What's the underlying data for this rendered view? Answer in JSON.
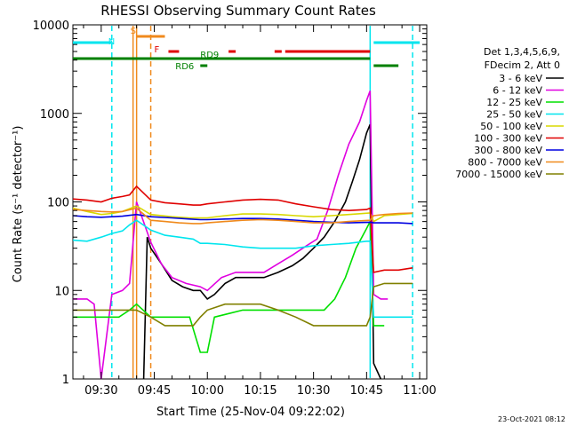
{
  "chart_data": {
    "type": "line",
    "title": "RHESSI Observing Summary Count Rates",
    "xlabel": "Start Time (25-Nov-04 09:22:02)",
    "ylabel": "Count Rate (s⁻¹ detector⁻¹)",
    "y_scale": "log",
    "ylim": [
      1,
      10000
    ],
    "xlim": [
      "09:22",
      "11:02"
    ],
    "x_ticks": [
      "09:30",
      "09:45",
      "10:00",
      "10:15",
      "10:30",
      "10:45",
      "11:00"
    ],
    "y_ticks": [
      "1",
      "10",
      "100",
      "1000",
      "10000"
    ],
    "grid": false,
    "legend": {
      "placement": "right",
      "header": [
        "Det 1,3,4,5,6,9,",
        "FDecim 2, Att 0"
      ]
    },
    "footer_date": "23-Oct-2021 08:12",
    "flags": [
      {
        "label": "S",
        "color": "#f08a1c",
        "segments": [
          [
            "09:40",
            "09:48"
          ]
        ]
      },
      {
        "label": "N",
        "color": "#00e5ee",
        "segments": [
          [
            "09:22",
            "09:33"
          ],
          [
            "10:47",
            "11:00"
          ]
        ]
      },
      {
        "label": "F",
        "color": "#e00000",
        "segments": [
          [
            "09:49",
            "09:52"
          ],
          [
            "10:06",
            "10:08"
          ],
          [
            "10:19",
            "10:21"
          ],
          [
            "10:22",
            "10:46"
          ]
        ]
      },
      {
        "label": "RD6",
        "color": "#008000",
        "segments": [
          [
            "09:58",
            "10:00"
          ],
          [
            "10:47",
            "10:54"
          ]
        ]
      },
      {
        "label": "RD9",
        "color": "#008000",
        "segments": [
          [
            "09:22",
            "10:46"
          ]
        ]
      }
    ],
    "vlines": [
      {
        "time": "09:33",
        "color": "#00e5ee",
        "style": "dashed"
      },
      {
        "time": "09:39",
        "color": "#f08a1c",
        "style": "solid"
      },
      {
        "time": "09:40",
        "color": "#f08a1c",
        "style": "solid"
      },
      {
        "time": "09:44",
        "color": "#f08a1c",
        "style": "dashed"
      },
      {
        "time": "10:46",
        "color": "#00e5ee",
        "style": "solid"
      },
      {
        "time": "10:58",
        "color": "#00e5ee",
        "style": "dashed"
      }
    ],
    "gaps": [
      [
        "09:40",
        "09:44"
      ],
      [
        "10:46",
        "10:47"
      ]
    ],
    "series": [
      {
        "name": "3 - 6 keV",
        "color": "#000000",
        "points": [
          [
            "09:42",
            1
          ],
          [
            "09:43",
            40
          ],
          [
            "09:44",
            30
          ],
          [
            "09:47",
            20
          ],
          [
            "09:50",
            13
          ],
          [
            "09:53",
            11
          ],
          [
            "09:56",
            10
          ],
          [
            "09:58",
            10
          ],
          [
            "10:00",
            8
          ],
          [
            "10:02",
            9
          ],
          [
            "10:05",
            12
          ],
          [
            "10:08",
            14
          ],
          [
            "10:12",
            14
          ],
          [
            "10:16",
            14
          ],
          [
            "10:20",
            16
          ],
          [
            "10:24",
            19
          ],
          [
            "10:27",
            23
          ],
          [
            "10:30",
            30
          ],
          [
            "10:33",
            40
          ],
          [
            "10:36",
            60
          ],
          [
            "10:39",
            100
          ],
          [
            "10:41",
            170
          ],
          [
            "10:43",
            300
          ],
          [
            "10:45",
            600
          ],
          [
            "10:46",
            750
          ],
          [
            "10:47",
            1.5
          ],
          [
            "10:49",
            1
          ]
        ]
      },
      {
        "name": "6 - 12 keV",
        "color": "#e000e0",
        "points": [
          [
            "09:22",
            8
          ],
          [
            "09:26",
            8
          ],
          [
            "09:28",
            7
          ],
          [
            "09:30",
            1
          ],
          [
            "09:33",
            9
          ],
          [
            "09:36",
            10
          ],
          [
            "09:38",
            12
          ],
          [
            "09:40",
            100
          ],
          [
            "09:44",
            35
          ],
          [
            "09:47",
            20
          ],
          [
            "09:50",
            14
          ],
          [
            "09:54",
            12
          ],
          [
            "09:58",
            11
          ],
          [
            "10:00",
            10
          ],
          [
            "10:04",
            14
          ],
          [
            "10:08",
            16
          ],
          [
            "10:12",
            16
          ],
          [
            "10:16",
            16
          ],
          [
            "10:20",
            20
          ],
          [
            "10:24",
            25
          ],
          [
            "10:28",
            32
          ],
          [
            "10:31",
            38
          ],
          [
            "10:34",
            80
          ],
          [
            "10:37",
            200
          ],
          [
            "10:40",
            450
          ],
          [
            "10:43",
            800
          ],
          [
            "10:45",
            1400
          ],
          [
            "10:46",
            1800
          ],
          [
            "10:47",
            9
          ],
          [
            "10:49",
            8
          ],
          [
            "10:51",
            8
          ]
        ]
      },
      {
        "name": "12 - 25 keV",
        "color": "#00e000",
        "points": [
          [
            "09:22",
            5
          ],
          [
            "09:30",
            5
          ],
          [
            "09:35",
            5
          ],
          [
            "09:38",
            6
          ],
          [
            "09:40",
            7
          ],
          [
            "09:44",
            5
          ],
          [
            "09:50",
            5
          ],
          [
            "09:55",
            5
          ],
          [
            "09:58",
            2
          ],
          [
            "10:00",
            2
          ],
          [
            "10:02",
            5
          ],
          [
            "10:10",
            6
          ],
          [
            "10:20",
            6
          ],
          [
            "10:30",
            6
          ],
          [
            "10:33",
            6
          ],
          [
            "10:36",
            8
          ],
          [
            "10:39",
            14
          ],
          [
            "10:42",
            30
          ],
          [
            "10:45",
            50
          ],
          [
            "10:46",
            60
          ],
          [
            "10:47",
            4
          ],
          [
            "10:50",
            4
          ]
        ]
      },
      {
        "name": "25 - 50 keV",
        "color": "#00e5ee",
        "points": [
          [
            "09:22",
            37
          ],
          [
            "09:26",
            36
          ],
          [
            "09:30",
            40
          ],
          [
            "09:33",
            44
          ],
          [
            "09:36",
            47
          ],
          [
            "09:38",
            55
          ],
          [
            "09:40",
            62
          ],
          [
            "09:44",
            48
          ],
          [
            "09:48",
            42
          ],
          [
            "09:52",
            40
          ],
          [
            "09:56",
            38
          ],
          [
            "09:58",
            34
          ],
          [
            "10:00",
            34
          ],
          [
            "10:05",
            33
          ],
          [
            "10:10",
            31
          ],
          [
            "10:15",
            30
          ],
          [
            "10:20",
            30
          ],
          [
            "10:25",
            30
          ],
          [
            "10:30",
            32
          ],
          [
            "10:35",
            33
          ],
          [
            "10:40",
            34
          ],
          [
            "10:45",
            36
          ],
          [
            "10:46",
            36
          ],
          [
            "10:47",
            5
          ],
          [
            "10:50",
            5
          ],
          [
            "10:54",
            5
          ],
          [
            "10:58",
            5
          ]
        ]
      },
      {
        "name": "50 - 100 keV",
        "color": "#d8d800",
        "points": [
          [
            "09:22",
            85
          ],
          [
            "09:26",
            78
          ],
          [
            "09:30",
            72
          ],
          [
            "09:33",
            74
          ],
          [
            "09:36",
            78
          ],
          [
            "09:40",
            90
          ],
          [
            "09:44",
            72
          ],
          [
            "09:50",
            68
          ],
          [
            "09:55",
            66
          ],
          [
            "09:58",
            66
          ],
          [
            "10:00",
            66
          ],
          [
            "10:05",
            70
          ],
          [
            "10:10",
            73
          ],
          [
            "10:15",
            73
          ],
          [
            "10:20",
            72
          ],
          [
            "10:25",
            70
          ],
          [
            "10:30",
            68
          ],
          [
            "10:35",
            70
          ],
          [
            "10:40",
            72
          ],
          [
            "10:46",
            75
          ],
          [
            "10:47",
            60
          ],
          [
            "10:50",
            70
          ],
          [
            "10:54",
            72
          ],
          [
            "10:58",
            74
          ]
        ]
      },
      {
        "name": "100 - 300 keV",
        "color": "#e00000",
        "points": [
          [
            "09:22",
            108
          ],
          [
            "09:26",
            105
          ],
          [
            "09:30",
            100
          ],
          [
            "09:33",
            110
          ],
          [
            "09:36",
            115
          ],
          [
            "09:38",
            120
          ],
          [
            "09:40",
            150
          ],
          [
            "09:44",
            105
          ],
          [
            "09:48",
            98
          ],
          [
            "09:52",
            95
          ],
          [
            "09:56",
            92
          ],
          [
            "09:58",
            92
          ],
          [
            "10:00",
            95
          ],
          [
            "10:05",
            100
          ],
          [
            "10:10",
            105
          ],
          [
            "10:15",
            107
          ],
          [
            "10:20",
            105
          ],
          [
            "10:25",
            95
          ],
          [
            "10:30",
            88
          ],
          [
            "10:35",
            82
          ],
          [
            "10:40",
            80
          ],
          [
            "10:45",
            82
          ],
          [
            "10:46",
            85
          ],
          [
            "10:47",
            16
          ],
          [
            "10:50",
            17
          ],
          [
            "10:54",
            17
          ],
          [
            "10:58",
            18
          ]
        ]
      },
      {
        "name": "300 - 800 keV",
        "color": "#0000e0",
        "points": [
          [
            "09:22",
            70
          ],
          [
            "09:26",
            68
          ],
          [
            "09:30",
            67
          ],
          [
            "09:33",
            68
          ],
          [
            "09:36",
            69
          ],
          [
            "09:40",
            72
          ],
          [
            "09:44",
            68
          ],
          [
            "09:50",
            66
          ],
          [
            "09:55",
            64
          ],
          [
            "09:58",
            63
          ],
          [
            "10:00",
            63
          ],
          [
            "10:05",
            64
          ],
          [
            "10:10",
            65
          ],
          [
            "10:15",
            65
          ],
          [
            "10:20",
            64
          ],
          [
            "10:25",
            62
          ],
          [
            "10:30",
            60
          ],
          [
            "10:35",
            59
          ],
          [
            "10:40",
            58
          ],
          [
            "10:46",
            59
          ],
          [
            "10:47",
            58
          ],
          [
            "10:50",
            58
          ],
          [
            "10:54",
            58
          ],
          [
            "10:58",
            57
          ]
        ]
      },
      {
        "name": "800 - 7000 keV",
        "color": "#f08a1c",
        "points": [
          [
            "09:22",
            82
          ],
          [
            "09:26",
            80
          ],
          [
            "09:30",
            78
          ],
          [
            "09:33",
            77
          ],
          [
            "09:36",
            78
          ],
          [
            "09:40",
            85
          ],
          [
            "09:44",
            62
          ],
          [
            "09:48",
            60
          ],
          [
            "09:52",
            58
          ],
          [
            "09:56",
            57
          ],
          [
            "09:58",
            57
          ],
          [
            "10:00",
            58
          ],
          [
            "10:05",
            60
          ],
          [
            "10:10",
            62
          ],
          [
            "10:15",
            63
          ],
          [
            "10:20",
            62
          ],
          [
            "10:25",
            60
          ],
          [
            "10:30",
            58
          ],
          [
            "10:35",
            58
          ],
          [
            "10:40",
            60
          ],
          [
            "10:46",
            62
          ],
          [
            "10:47",
            70
          ],
          [
            "10:50",
            72
          ],
          [
            "10:54",
            74
          ],
          [
            "10:58",
            75
          ]
        ]
      },
      {
        "name": "7000 - 15000 keV",
        "color": "#808000",
        "points": [
          [
            "09:22",
            6
          ],
          [
            "09:26",
            6
          ],
          [
            "09:30",
            6
          ],
          [
            "09:33",
            6
          ],
          [
            "09:36",
            6
          ],
          [
            "09:38",
            6
          ],
          [
            "09:40",
            6
          ],
          [
            "09:44",
            5
          ],
          [
            "09:48",
            4
          ],
          [
            "09:52",
            4
          ],
          [
            "09:56",
            4
          ],
          [
            "09:58",
            5
          ],
          [
            "10:00",
            6
          ],
          [
            "10:05",
            7
          ],
          [
            "10:10",
            7
          ],
          [
            "10:15",
            7
          ],
          [
            "10:20",
            6
          ],
          [
            "10:25",
            5
          ],
          [
            "10:30",
            4
          ],
          [
            "10:35",
            4
          ],
          [
            "10:40",
            4
          ],
          [
            "10:45",
            4
          ],
          [
            "10:46",
            5
          ],
          [
            "10:47",
            11
          ],
          [
            "10:50",
            12
          ],
          [
            "10:54",
            12
          ],
          [
            "10:58",
            12
          ]
        ]
      }
    ]
  }
}
